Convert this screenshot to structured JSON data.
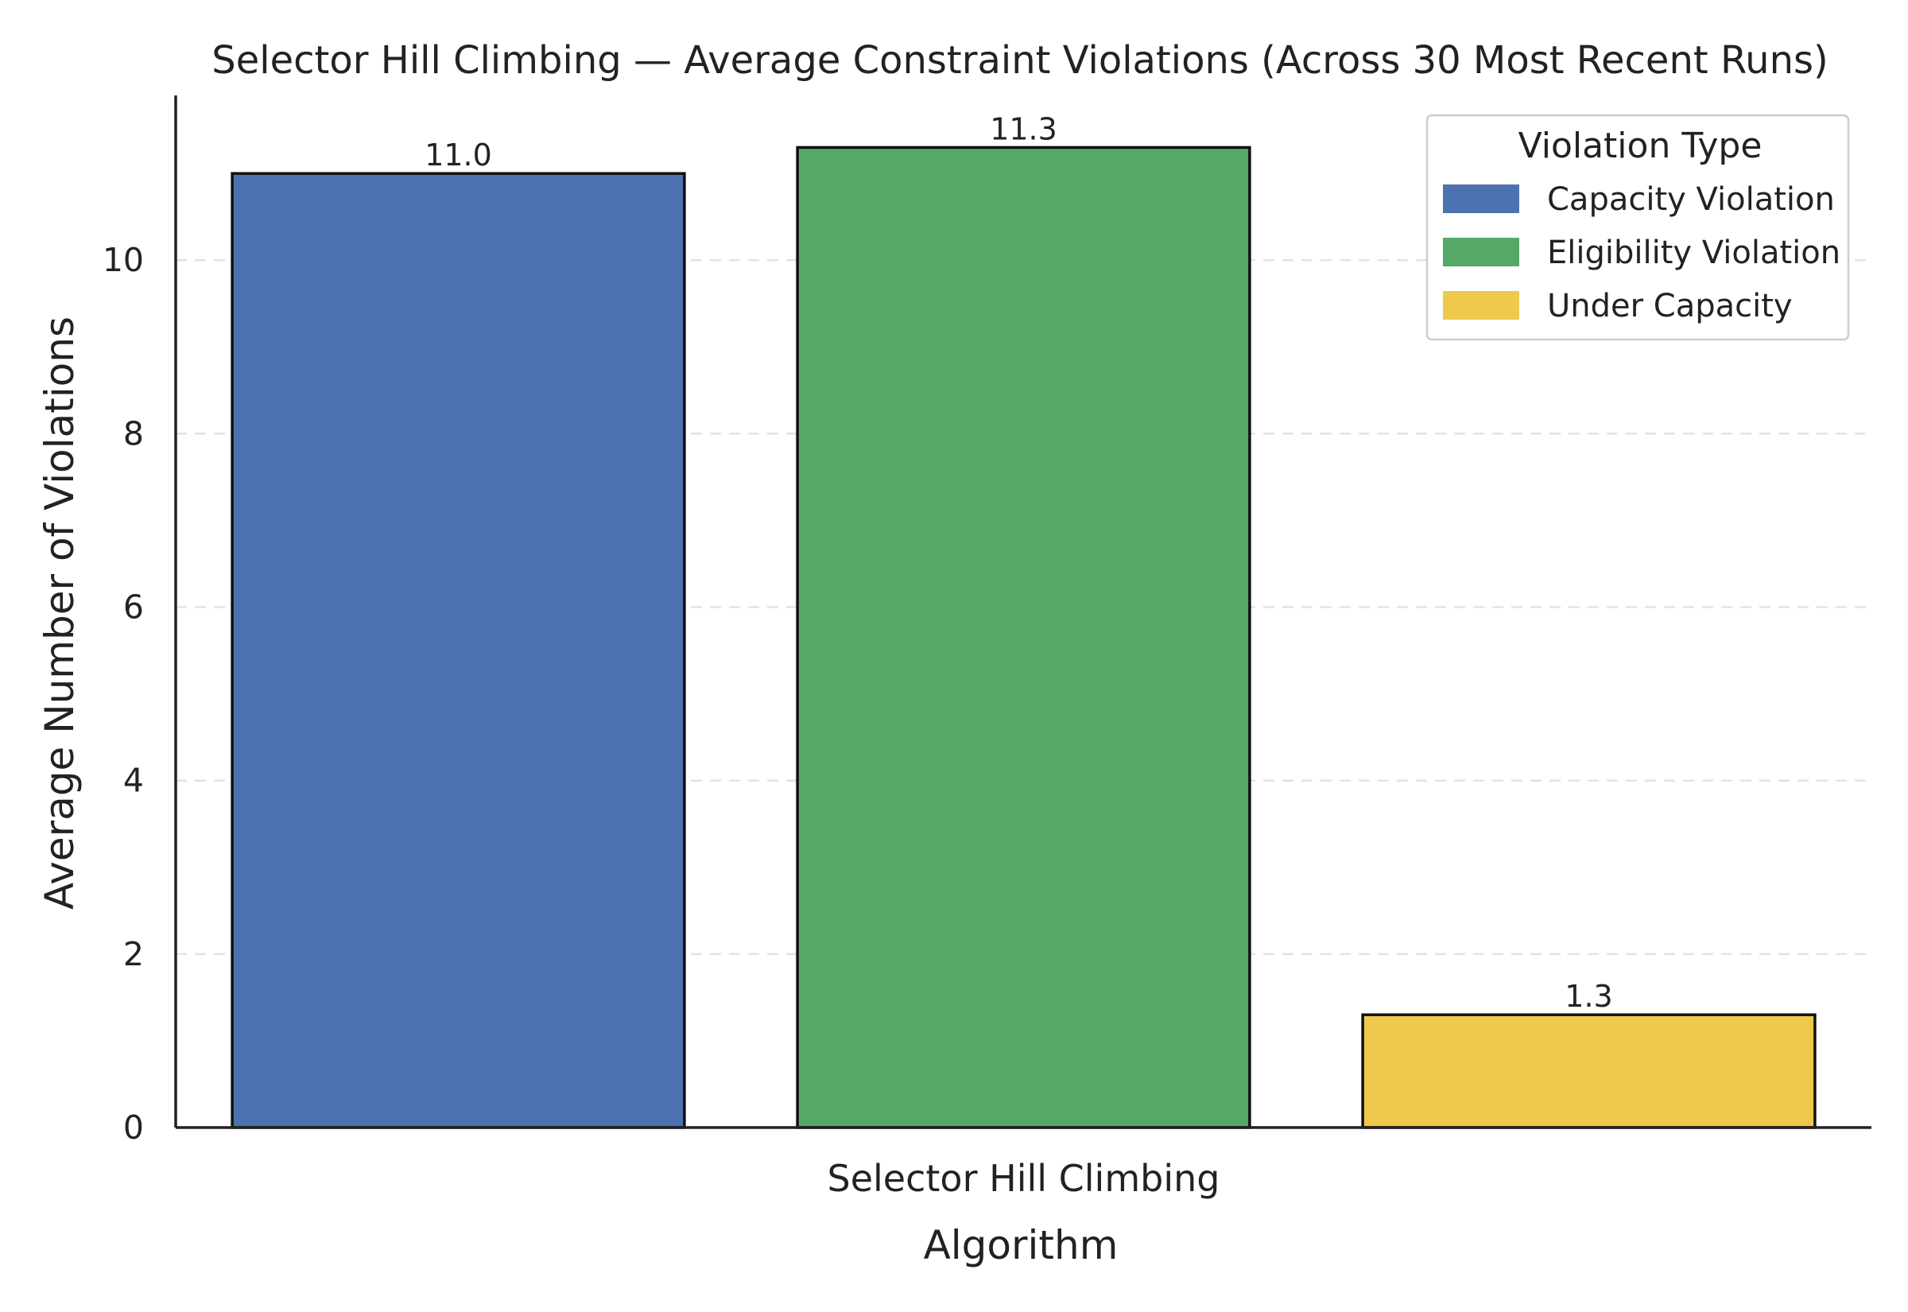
{
  "chart_data": {
    "type": "bar",
    "title": "Selector Hill Climbing — Average Constraint Violations (Across 30 Most Recent Runs)",
    "xlabel": "Algorithm",
    "ylabel": "Average Number of Violations",
    "categories": [
      "Selector Hill Climbing"
    ],
    "series": [
      {
        "name": "Capacity Violation",
        "values": [
          11.0
        ],
        "label": "11.0",
        "color": "#4C72B0"
      },
      {
        "name": "Eligibility Violation",
        "values": [
          11.3
        ],
        "label": "11.3",
        "color": "#55A868"
      },
      {
        "name": "Under Capacity",
        "values": [
          1.3
        ],
        "label": "1.3",
        "color": "#EFC94C"
      }
    ],
    "ylim": [
      0,
      11.9
    ],
    "yticks": [
      0,
      2,
      4,
      6,
      8,
      10
    ],
    "grid": {
      "y": true,
      "style": "dashed",
      "color": "#e3e3e3"
    },
    "legend": {
      "title": "Violation Type",
      "position": "top-right"
    }
  }
}
